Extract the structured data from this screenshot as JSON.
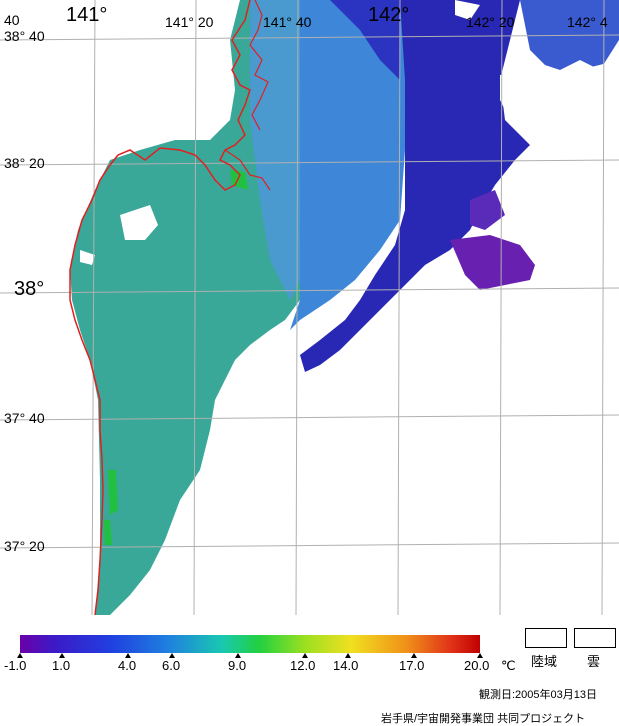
{
  "map": {
    "lon_labels": [
      {
        "text": "141°",
        "big": true
      },
      {
        "text": "141° 20",
        "big": false
      },
      {
        "text": "141° 40",
        "big": false
      },
      {
        "text": "142°",
        "big": true
      },
      {
        "text": "142° 20",
        "big": false
      },
      {
        "text": "142° 4",
        "big": false
      }
    ],
    "lat_labels": [
      {
        "text": "38° 40",
        "big": false
      },
      {
        "text": "38° 20",
        "big": false
      },
      {
        "text": "38°",
        "big": true
      },
      {
        "text": "37° 40",
        "big": false
      },
      {
        "text": "37° 20",
        "big": false
      }
    ],
    "corner_label": "40"
  },
  "legend": {
    "ticks": [
      "-1.0",
      "1.0",
      "4.0",
      "6.0",
      "9.0",
      "12.0",
      "14.0",
      "17.0",
      "20.0"
    ],
    "unit": "℃",
    "land_label": "陸域",
    "cloud_label": "雲"
  },
  "footer": {
    "observation_date": "観測日:2005年03月13日",
    "credit": "岩手県/宇宙開発事業団 共同プロジェクト"
  },
  "colors": {
    "coast": "#e02020",
    "grid": "#b0b0b0",
    "ocean_deep": "#2a2ab8",
    "ocean_mid": "#3a78d8",
    "ocean_green": "#3aa898",
    "ocean_purple": "#6a20b0"
  }
}
